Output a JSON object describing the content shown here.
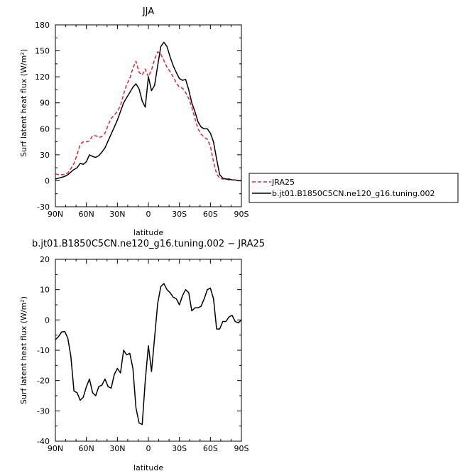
{
  "chart_data": [
    {
      "type": "line",
      "title": "JJA",
      "xlabel": "latitude",
      "ylabel": "Surf latent heat flux (W/m²)",
      "xlim": [
        -90,
        90
      ],
      "ylim": [
        -30,
        180
      ],
      "x_tick_values": [
        -90,
        -60,
        -30,
        0,
        30,
        60,
        90
      ],
      "x_tick_labels": [
        "90N",
        "60N",
        "30N",
        "0",
        "30S",
        "60S",
        "90S"
      ],
      "y_ticks": [
        -30,
        0,
        30,
        60,
        90,
        120,
        150,
        180
      ],
      "legend": {
        "placement": "right"
      },
      "series": [
        {
          "name": "JRA25",
          "color": "#e8202a",
          "dash": "dashed",
          "x": [
            -90,
            -87,
            -84,
            -81,
            -78,
            -75,
            -72,
            -69,
            -66,
            -63,
            -60,
            -57,
            -54,
            -51,
            -48,
            -45,
            -42,
            -39,
            -36,
            -33,
            -30,
            -27,
            -24,
            -21,
            -18,
            -15,
            -12,
            -9,
            -6,
            -3,
            0,
            3,
            6,
            9,
            12,
            15,
            18,
            21,
            24,
            27,
            30,
            33,
            36,
            39,
            42,
            45,
            48,
            51,
            54,
            57,
            60,
            63,
            66,
            69,
            72,
            75,
            78,
            81,
            84,
            87,
            90
          ],
          "y": [
            8,
            7,
            7,
            7,
            9,
            14,
            20,
            30,
            42,
            45,
            45,
            46,
            52,
            52,
            50,
            51,
            55,
            64,
            72,
            76,
            80,
            87,
            100,
            111,
            118,
            130,
            138,
            125,
            122,
            129,
            120,
            128,
            140,
            149,
            146,
            139,
            131,
            126,
            120,
            113,
            108,
            107,
            102,
            95,
            85,
            72,
            60,
            54,
            50,
            48,
            40,
            22,
            8,
            3,
            2,
            2,
            1,
            1,
            1,
            0,
            0
          ]
        },
        {
          "name": "b.jt01.B1850C5CN.ne120_g16.tuning.002",
          "color": "#000000",
          "dash": "solid",
          "x": [
            -90,
            -87,
            -84,
            -81,
            -78,
            -75,
            -72,
            -69,
            -66,
            -63,
            -60,
            -57,
            -54,
            -51,
            -48,
            -45,
            -42,
            -39,
            -36,
            -33,
            -30,
            -27,
            -24,
            -21,
            -18,
            -15,
            -12,
            -9,
            -6,
            -3,
            0,
            3,
            6,
            9,
            12,
            15,
            18,
            21,
            24,
            27,
            30,
            33,
            36,
            39,
            42,
            45,
            48,
            51,
            54,
            57,
            60,
            63,
            66,
            69,
            72,
            75,
            78,
            81,
            84,
            87,
            90
          ],
          "y": [
            2,
            3,
            4,
            5,
            7,
            10,
            13,
            15,
            20,
            19,
            22,
            30,
            28,
            27,
            29,
            33,
            38,
            46,
            54,
            62,
            70,
            80,
            90,
            96,
            102,
            108,
            112,
            106,
            92,
            85,
            120,
            104,
            110,
            133,
            155,
            160,
            155,
            143,
            133,
            125,
            118,
            116,
            117,
            105,
            90,
            80,
            68,
            62,
            60,
            60,
            55,
            45,
            25,
            7,
            3,
            2,
            2,
            1,
            1,
            0,
            0
          ]
        }
      ]
    },
    {
      "type": "line",
      "title": "b.jt01.B1850C5CN.ne120_g16.tuning.002 − JRA25",
      "xlabel": "latitude",
      "ylabel": "Surf latent heat flux (W/m²)",
      "xlim": [
        -90,
        90
      ],
      "ylim": [
        -40,
        20
      ],
      "x_tick_values": [
        -90,
        -60,
        -30,
        0,
        30,
        60,
        90
      ],
      "x_tick_labels": [
        "90N",
        "60N",
        "30N",
        "0",
        "30S",
        "60S",
        "90S"
      ],
      "y_ticks": [
        -40,
        -30,
        -20,
        -10,
        0,
        10,
        20
      ],
      "series": [
        {
          "color": "#000000",
          "dash": "solid",
          "x": [
            -90,
            -87,
            -84,
            -81,
            -78,
            -75,
            -72,
            -69,
            -66,
            -63,
            -60,
            -57,
            -54,
            -51,
            -48,
            -45,
            -42,
            -39,
            -36,
            -33,
            -30,
            -27,
            -24,
            -21,
            -18,
            -15,
            -12,
            -9,
            -6,
            -3,
            0,
            3,
            6,
            9,
            12,
            15,
            18,
            21,
            24,
            27,
            30,
            33,
            36,
            39,
            42,
            45,
            48,
            51,
            54,
            57,
            60,
            63,
            66,
            69,
            72,
            75,
            78,
            81,
            84,
            87,
            90
          ],
          "y": [
            -6.5,
            -5.5,
            -4,
            -3.8,
            -6,
            -12,
            -23.5,
            -24,
            -26.5,
            -25.5,
            -22,
            -19.5,
            -24,
            -25,
            -22,
            -21.5,
            -19.5,
            -22,
            -22.5,
            -18,
            -16,
            -17.5,
            -10,
            -11.5,
            -11,
            -16,
            -29,
            -34,
            -34.5,
            -20,
            -8.5,
            -17,
            -6,
            5.5,
            11,
            12,
            10,
            9,
            7.5,
            7,
            5,
            8,
            10,
            9,
            3,
            4,
            4,
            4.5,
            7,
            10,
            10.5,
            7,
            -3,
            -3,
            -0.5,
            -0.5,
            1,
            1.5,
            -0.5,
            -1,
            0
          ]
        }
      ]
    }
  ]
}
